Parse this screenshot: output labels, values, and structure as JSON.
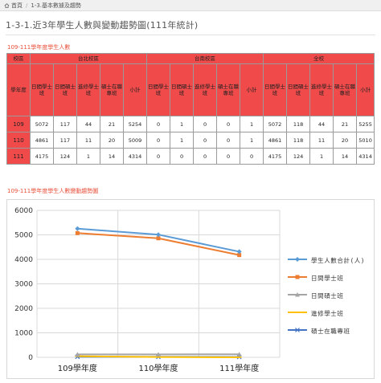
{
  "breadcrumb": {
    "home": "首頁",
    "separator": "/",
    "current": "1-3.基本數據及趨勢"
  },
  "page_title": "1-3-1.近3年學生人數與變動趨勢圖(111年統計)",
  "table_section_title": "109-111學年度學生人數",
  "chart_section_title": "109-111學年度學生人數變動趨勢圖",
  "table": {
    "corner_label": "校區",
    "year_header": "學年度",
    "campuses": [
      "台北校區",
      "台南校區",
      "全校"
    ],
    "sub_headers": [
      "日間學士班",
      "日間碩士班",
      "進修學士班",
      "碩士在職專班",
      "小計"
    ],
    "rows": [
      {
        "year": "109",
        "values": [
          "5072",
          "117",
          "44",
          "21",
          "5254",
          "0",
          "1",
          "0",
          "0",
          "1",
          "5072",
          "118",
          "44",
          "21",
          "5255"
        ]
      },
      {
        "year": "110",
        "values": [
          "4861",
          "117",
          "11",
          "20",
          "5009",
          "0",
          "1",
          "0",
          "0",
          "1",
          "4861",
          "118",
          "11",
          "20",
          "5010"
        ]
      },
      {
        "year": "111",
        "values": [
          "4175",
          "124",
          "1",
          "14",
          "4314",
          "0",
          "0",
          "0",
          "0",
          "0",
          "4175",
          "124",
          "1",
          "14",
          "4314"
        ]
      }
    ]
  },
  "chart_data": {
    "type": "line",
    "categories": [
      "109學年度",
      "110學年度",
      "111學年度"
    ],
    "ylim": [
      0,
      6000
    ],
    "yticks": [
      "0",
      "1000",
      "2000",
      "3000",
      "4000",
      "5000",
      "6000"
    ],
    "grid": true,
    "legend_position": "right",
    "series": [
      {
        "name": "學生人數合計(人)",
        "color": "#5b9bd5",
        "marker": "diamond",
        "values": [
          5255,
          5010,
          4314
        ]
      },
      {
        "name": "日間學士班",
        "color": "#ed7d31",
        "marker": "square",
        "values": [
          5072,
          4861,
          4175
        ]
      },
      {
        "name": "日間碩士班",
        "color": "#a5a5a5",
        "marker": "triangle",
        "values": [
          118,
          118,
          124
        ]
      },
      {
        "name": "進修學士班",
        "color": "#ffc000",
        "marker": "line",
        "values": [
          44,
          11,
          1
        ]
      },
      {
        "name": "碩士在職專班",
        "color": "#4472c4",
        "marker": "x",
        "values": [
          21,
          20,
          14
        ]
      }
    ]
  },
  "colors": {
    "header_red": "#f04a4a",
    "accent": "#e8503a"
  }
}
